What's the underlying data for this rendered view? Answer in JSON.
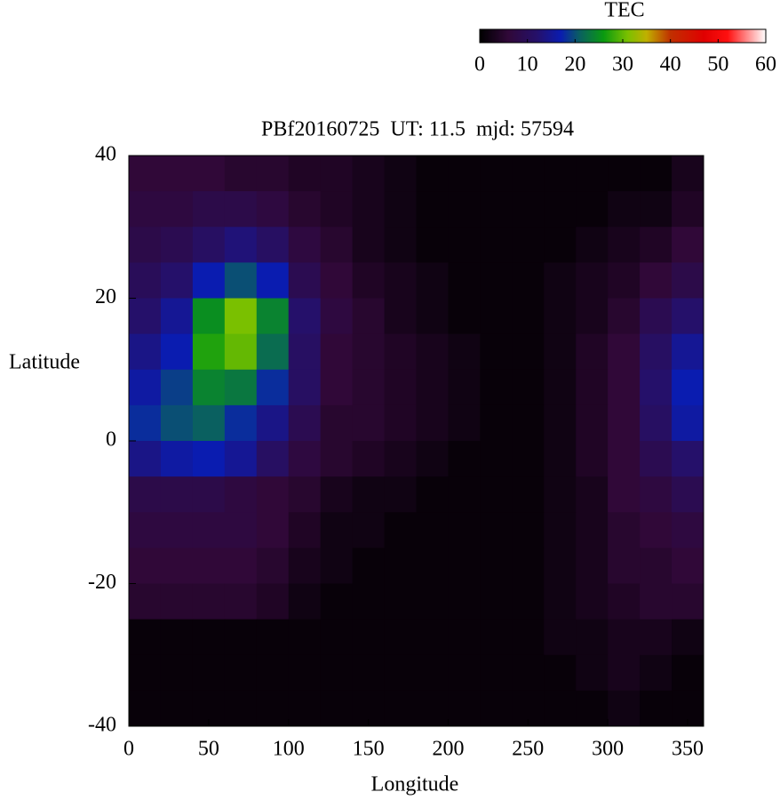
{
  "chart_data": {
    "type": "heatmap",
    "title": "PBf20160725  UT: 11.5  mjd: 57594",
    "x_label": "Longitude",
    "y_label": "Latitude",
    "colorbar_label": "TEC",
    "xlim": [
      0,
      360
    ],
    "ylim": [
      -40,
      40
    ],
    "xticks": [
      0,
      50,
      100,
      150,
      200,
      250,
      300,
      350
    ],
    "yticks": [
      40,
      20,
      0,
      -20,
      -40
    ],
    "clim": [
      0,
      60
    ],
    "cticks": [
      0,
      10,
      20,
      30,
      40,
      50,
      60
    ],
    "colormap": [
      {
        "value": 0,
        "color": "#000000"
      },
      {
        "value": 6,
        "color": "#300838"
      },
      {
        "value": 12,
        "color": "#25106a"
      },
      {
        "value": 17,
        "color": "#0a1cb0"
      },
      {
        "value": 21,
        "color": "#0a6060"
      },
      {
        "value": 26,
        "color": "#0a9a10"
      },
      {
        "value": 31,
        "color": "#7ac000"
      },
      {
        "value": 35,
        "color": "#c0b000"
      },
      {
        "value": 40,
        "color": "#c03000"
      },
      {
        "value": 47,
        "color": "#e00000"
      },
      {
        "value": 52,
        "color": "#ff1010"
      },
      {
        "value": 60,
        "color": "#ffffff"
      }
    ],
    "x_bins": [
      0,
      20,
      40,
      60,
      80,
      100,
      120,
      140,
      160,
      180,
      200,
      220,
      240,
      260,
      280,
      300,
      320,
      340,
      360
    ],
    "y_bins": [
      40,
      35,
      30,
      25,
      20,
      15,
      10,
      5,
      0,
      -5,
      -10,
      -15,
      -20,
      -25,
      -30,
      -35,
      -40
    ],
    "z": [
      [
        6,
        6,
        6,
        5,
        5,
        4,
        4,
        3,
        2,
        1,
        1,
        1,
        1,
        1,
        1,
        1,
        1,
        3
      ],
      [
        7,
        7,
        8,
        8,
        7,
        5,
        4,
        3,
        2,
        1,
        1,
        1,
        1,
        1,
        1,
        2,
        2,
        4
      ],
      [
        8,
        9,
        11,
        13,
        11,
        7,
        5,
        3,
        2,
        1,
        1,
        1,
        1,
        1,
        2,
        3,
        4,
        6
      ],
      [
        10,
        12,
        17,
        20,
        17,
        9,
        6,
        4,
        3,
        2,
        1,
        1,
        1,
        2,
        3,
        4,
        6,
        8
      ],
      [
        12,
        15,
        25,
        31,
        24,
        12,
        7,
        5,
        3,
        2,
        1,
        1,
        1,
        2,
        3,
        5,
        9,
        12
      ],
      [
        14,
        17,
        27,
        30,
        22,
        11,
        6,
        5,
        4,
        3,
        2,
        1,
        1,
        2,
        4,
        6,
        11,
        15
      ],
      [
        16,
        19,
        24,
        23,
        18,
        11,
        6,
        5,
        4,
        3,
        2,
        1,
        1,
        2,
        4,
        6,
        12,
        17
      ],
      [
        18,
        20,
        21,
        18,
        14,
        9,
        5,
        5,
        4,
        3,
        2,
        1,
        1,
        2,
        4,
        6,
        11,
        16
      ],
      [
        14,
        16,
        17,
        15,
        11,
        7,
        5,
        4,
        3,
        2,
        1,
        1,
        1,
        2,
        4,
        6,
        9,
        12
      ],
      [
        8,
        8,
        8,
        7,
        6,
        5,
        3,
        2,
        2,
        1,
        1,
        1,
        1,
        2,
        3,
        6,
        7,
        9
      ],
      [
        7,
        7,
        7,
        7,
        6,
        4,
        2,
        2,
        1,
        1,
        1,
        1,
        1,
        2,
        3,
        5,
        6,
        7
      ],
      [
        6,
        6,
        6,
        6,
        5,
        3,
        2,
        1,
        1,
        1,
        1,
        1,
        1,
        2,
        3,
        5,
        5,
        6
      ],
      [
        5,
        5,
        5,
        5,
        4,
        2,
        1,
        1,
        1,
        1,
        1,
        1,
        1,
        2,
        3,
        4,
        5,
        5
      ],
      [
        1,
        1,
        1,
        1,
        1,
        1,
        1,
        1,
        1,
        1,
        1,
        1,
        1,
        2,
        2,
        3,
        3,
        2
      ],
      [
        1,
        1,
        1,
        1,
        1,
        1,
        1,
        1,
        1,
        1,
        1,
        1,
        1,
        1,
        2,
        3,
        2,
        1
      ],
      [
        1,
        1,
        1,
        1,
        1,
        1,
        1,
        1,
        1,
        1,
        1,
        1,
        1,
        1,
        1,
        2,
        1,
        1
      ]
    ]
  }
}
